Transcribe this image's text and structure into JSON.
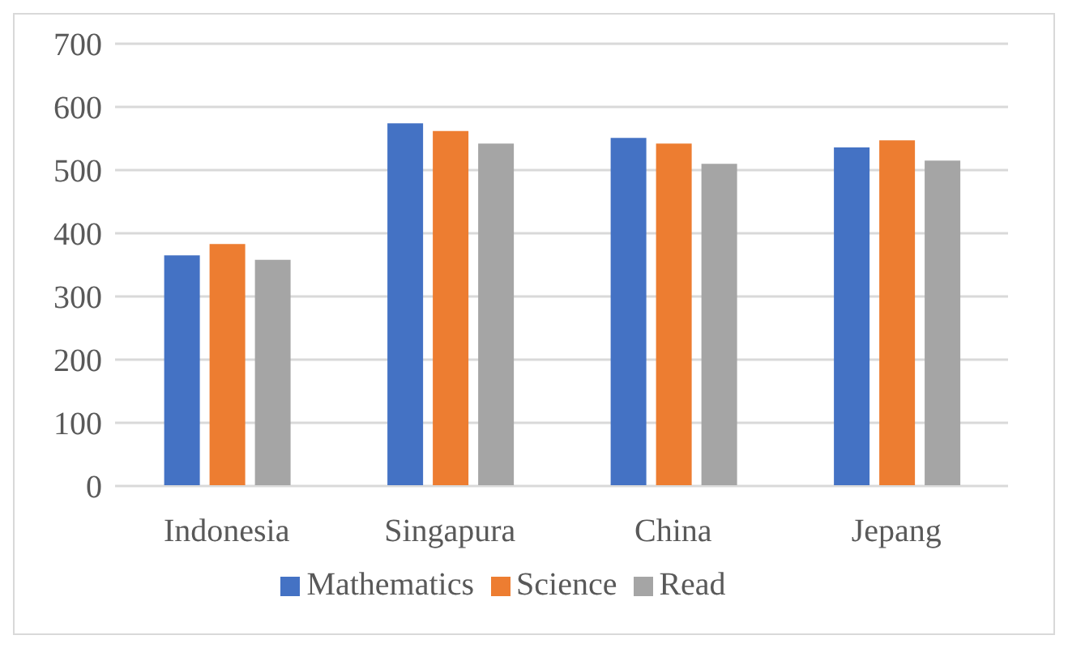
{
  "chart_data": {
    "type": "bar",
    "categories": [
      "Indonesia",
      "Singapura",
      "China",
      "Jepang"
    ],
    "series": [
      {
        "name": "Mathematics",
        "color": "#4472c4",
        "values": [
          365,
          574,
          551,
          536
        ]
      },
      {
        "name": "Science",
        "color": "#ed7d31",
        "values": [
          383,
          562,
          542,
          547
        ]
      },
      {
        "name": "Read",
        "color": "#a5a5a5",
        "values": [
          358,
          542,
          510,
          515
        ]
      }
    ],
    "ylim": [
      0,
      700
    ],
    "yticks": [
      0,
      100,
      200,
      300,
      400,
      500,
      600,
      700
    ],
    "grid": "y",
    "legend": "bottom"
  }
}
